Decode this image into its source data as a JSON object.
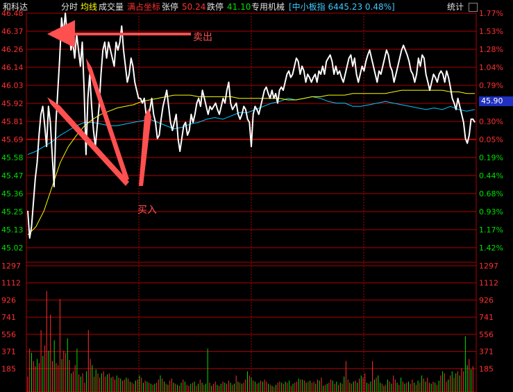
{
  "header": {
    "stock_name": "和科达",
    "mode": "分时",
    "avg_line": "均线",
    "volume": "成交量",
    "full_coords": "满占坐标",
    "limit_up_label": "张停",
    "limit_up_value": "50.24",
    "limit_down_label": "跌停",
    "limit_down_value": "41.10",
    "sector": "专用机械",
    "index_info": "[中小板指 6445.23 0.48%]",
    "stats_button": "统计"
  },
  "colors": {
    "price": "#ffffff",
    "avg": "#ffff00",
    "index": "#00c8ff",
    "grid": "#b00000",
    "up": "#ff3030",
    "down": "#00e000",
    "annotation": "#ff5050",
    "price_marker_bg": "#2030c0"
  },
  "annotations": {
    "sell": "卖出",
    "buy": "买入"
  },
  "current_price": "45.90",
  "chart_data": [
    {
      "type": "line",
      "name": "price",
      "ylim": [
        45.02,
        46.48
      ],
      "y_ticks": [
        "46.48",
        "46.37",
        "46.26",
        "46.14",
        "46.03",
        "45.92",
        "45.81",
        "45.69",
        "45.58",
        "45.47",
        "45.36",
        "45.25",
        "45.13",
        "45.02"
      ],
      "pct_ticks": [
        "1.77%",
        "1.53%",
        "1.28%",
        "1.04%",
        "0.79%",
        "0.55%",
        "0.30%",
        "0.05%",
        "0.19%",
        "0.44%",
        "0.68%",
        "0.93%",
        "1.17%",
        "1.42%"
      ],
      "prev_close": 45.67,
      "series": [
        {
          "name": "price",
          "values": [
            45.25,
            45.08,
            45.15,
            45.3,
            45.45,
            45.55,
            45.72,
            45.85,
            45.9,
            45.78,
            45.65,
            45.9,
            45.8,
            45.6,
            45.4,
            45.8,
            46.0,
            46.2,
            46.45,
            46.35,
            46.48,
            46.35,
            46.4,
            46.25,
            46.3,
            46.2,
            46.35,
            46.25,
            46.15,
            46.3,
            46.0,
            45.6,
            45.95,
            46.1,
            45.9,
            45.75,
            45.65,
            45.78,
            45.9,
            46.1,
            46.25,
            46.3,
            46.2,
            46.3,
            46.25,
            46.2,
            46.15,
            46.3,
            46.25,
            46.3,
            46.4,
            46.25,
            46.15,
            46.05,
            46.1,
            46.2,
            46.15,
            46.05,
            46.0,
            45.95,
            45.95,
            45.92,
            45.95,
            45.85,
            45.82,
            45.88,
            45.95,
            45.85,
            45.8,
            45.7,
            45.72,
            45.82,
            45.9,
            45.95,
            46.0,
            45.9,
            45.8,
            45.75,
            45.8,
            45.85,
            45.7,
            45.62,
            45.7,
            45.78,
            45.8,
            45.72,
            45.75,
            45.85,
            45.8,
            45.85,
            45.92,
            45.95,
            45.9,
            46.0,
            45.95,
            45.9,
            45.85,
            45.9,
            45.88,
            45.9,
            45.92,
            45.88,
            45.85,
            45.9,
            45.95,
            45.92,
            46.0,
            46.05,
            45.92,
            45.88,
            45.9,
            45.92,
            45.85,
            45.82,
            45.85,
            45.9,
            45.88,
            45.82,
            45.8,
            45.65,
            45.85,
            45.9,
            45.88,
            45.85,
            45.9,
            45.95,
            46.0,
            46.02,
            45.98,
            45.95,
            46.0,
            45.95,
            45.98,
            45.92,
            46.0,
            46.02,
            46.0,
            46.05,
            46.1,
            46.12,
            46.08,
            46.1,
            46.15,
            46.2,
            46.18,
            46.1,
            46.15,
            46.12,
            46.05,
            46.1,
            46.08,
            46.05,
            46.08,
            46.1,
            46.05,
            46.12,
            46.1,
            46.15,
            46.1,
            46.18,
            46.2,
            46.22,
            46.18,
            46.1,
            46.15,
            46.1,
            46.12,
            46.08,
            46.05,
            46.1,
            46.15,
            46.2,
            46.22,
            46.15,
            46.2,
            46.1,
            46.05,
            46.1,
            46.15,
            46.12,
            46.18,
            46.22,
            46.25,
            46.2,
            46.15,
            46.1,
            46.05,
            46.12,
            46.1,
            46.15,
            46.2,
            46.25,
            46.22,
            46.15,
            46.12,
            46.05,
            46.1,
            46.15,
            46.2,
            46.25,
            46.28,
            46.25,
            46.22,
            46.18,
            46.12,
            46.1,
            46.05,
            46.1,
            46.2,
            46.15,
            46.22,
            46.2,
            46.1,
            46.05,
            46.0,
            46.05,
            46.1,
            46.08,
            46.05,
            46.1,
            46.12,
            46.1,
            46.05,
            46.12,
            46.08,
            46.02,
            45.95,
            45.92,
            45.88,
            45.95,
            45.9,
            45.85,
            45.8,
            45.7,
            45.67,
            45.72,
            45.82,
            45.82,
            45.8
          ]
        },
        {
          "name": "avg",
          "values": [
            45.1,
            45.15,
            45.25,
            45.4,
            45.55,
            45.65,
            45.72,
            45.78,
            45.82,
            45.85,
            45.87,
            45.89,
            45.9,
            45.91,
            45.93,
            45.94,
            45.95,
            45.96,
            45.97,
            45.97,
            45.97,
            45.96,
            45.96,
            45.96,
            45.96,
            45.96,
            45.95,
            45.95,
            45.95,
            45.95,
            45.95,
            45.95,
            45.94,
            45.94,
            45.95,
            45.96,
            45.96,
            45.97,
            45.97,
            45.97,
            45.98,
            45.98,
            45.98,
            45.98,
            45.98,
            45.99,
            46.0,
            46.0,
            46.0,
            46.0,
            46.0,
            46.0,
            45.99,
            45.99,
            45.98,
            45.98
          ]
        },
        {
          "name": "index",
          "values": [
            45.6,
            45.62,
            45.65,
            45.68,
            45.72,
            45.75,
            45.78,
            45.8,
            45.8,
            45.79,
            45.78,
            45.78,
            45.79,
            45.8,
            45.81,
            45.82,
            45.8,
            45.78,
            45.76,
            45.77,
            45.79,
            45.8,
            45.82,
            45.83,
            45.82,
            45.84,
            45.86,
            45.86,
            45.88,
            45.9,
            45.92,
            45.93,
            45.95,
            45.94,
            45.95,
            45.96,
            45.95,
            45.93,
            45.92,
            45.92,
            45.9,
            45.9,
            45.91,
            45.92,
            45.93,
            45.92,
            45.91,
            45.9,
            45.89,
            45.88,
            45.89,
            45.88,
            45.9,
            45.88,
            45.87,
            45.88
          ]
        }
      ]
    },
    {
      "type": "bar",
      "name": "volume",
      "ylim": [
        0,
        1297
      ],
      "y_ticks": [
        "1297",
        "1112",
        "926",
        "741",
        "556",
        "371",
        "185"
      ],
      "values": [
        150,
        420,
        380,
        300,
        250,
        320,
        280,
        600,
        350,
        450,
        980,
        400,
        750,
        300,
        500,
        280,
        260,
        900,
        320,
        400,
        380,
        520,
        310,
        180,
        200,
        260,
        420,
        170,
        150,
        180,
        90,
        200,
        600,
        320,
        260,
        150,
        220,
        180,
        140,
        180,
        200,
        150,
        170,
        180,
        140,
        150,
        120,
        160,
        140,
        130,
        110,
        120,
        140,
        130,
        100,
        90,
        80,
        110,
        120,
        160,
        140,
        90,
        110,
        100,
        90,
        80,
        70,
        80,
        90,
        120,
        160,
        130,
        100,
        80,
        70,
        110,
        130,
        90,
        80,
        70,
        60,
        90,
        120,
        100,
        70,
        60,
        80,
        90,
        100,
        60,
        80,
        120,
        90,
        70,
        80,
        420,
        90,
        60,
        80,
        100,
        70,
        60,
        80,
        100,
        90,
        80,
        110,
        90,
        70,
        80,
        160,
        100,
        90,
        80,
        90,
        120,
        200,
        160,
        140,
        110,
        100,
        80,
        90,
        110,
        100,
        120,
        100,
        80,
        70,
        60,
        50,
        70,
        90,
        100,
        90,
        80,
        100,
        90,
        110,
        60,
        80,
        90,
        100,
        130,
        120,
        120,
        110,
        90,
        100,
        110,
        90,
        100,
        80,
        120,
        110,
        140,
        60,
        70,
        80,
        90,
        120,
        110,
        80,
        100,
        70,
        90,
        80,
        150,
        300,
        120,
        90,
        80,
        100,
        110,
        90,
        130,
        160,
        140,
        180,
        90,
        80,
        100,
        300,
        120,
        140,
        160,
        90,
        80,
        60,
        70,
        120,
        100,
        80,
        160,
        120,
        90,
        70,
        140,
        100,
        80,
        90,
        100,
        80,
        120,
        90,
        70,
        110,
        90,
        160,
        130,
        100,
        140,
        90,
        80,
        100,
        90,
        70,
        110,
        160,
        200,
        180,
        100,
        120,
        160,
        200,
        140,
        180,
        200,
        160,
        230,
        200,
        540,
        260,
        320,
        220,
        250
      ],
      "up": [
        1,
        1,
        0,
        1,
        1,
        0,
        1,
        1,
        0,
        1,
        1,
        0,
        1,
        1,
        0,
        1,
        1,
        1,
        0,
        1,
        1,
        0,
        1,
        0,
        1,
        1,
        0,
        1,
        0,
        1,
        1,
        0,
        1,
        1,
        0,
        1,
        0,
        1,
        1,
        0,
        1,
        1,
        0,
        1,
        0,
        1,
        1,
        0,
        1,
        0,
        1,
        1,
        0,
        1,
        0,
        1,
        1,
        0,
        1,
        0,
        1,
        0,
        1,
        0,
        1,
        0,
        1,
        0,
        1,
        1,
        0,
        1,
        0,
        1,
        0,
        1,
        1,
        0,
        1,
        0,
        1,
        0,
        1,
        0,
        1,
        1,
        0,
        1,
        0,
        1,
        0,
        1,
        0,
        1,
        0,
        0,
        1,
        0,
        1,
        1,
        0,
        1,
        0,
        1,
        0,
        1,
        1,
        0,
        1,
        0,
        1,
        0,
        1,
        0,
        1,
        1,
        0,
        1,
        0,
        1,
        0,
        1,
        0,
        1,
        0,
        1,
        1,
        0,
        1,
        0,
        1,
        0,
        1,
        1,
        0,
        1,
        0,
        1,
        0,
        1,
        0,
        1,
        1,
        0,
        1,
        0,
        1,
        0,
        1,
        0,
        1,
        1,
        0,
        1,
        0,
        1,
        0,
        1,
        0,
        1,
        1,
        0,
        1,
        0,
        1,
        0,
        1,
        0,
        1,
        1,
        0,
        1,
        0,
        1,
        0,
        1,
        0,
        1,
        1,
        0,
        1,
        0,
        1,
        0,
        1,
        0,
        0,
        1,
        0,
        1,
        0,
        1,
        0,
        1,
        1,
        0,
        1,
        0,
        1,
        0,
        1,
        0,
        1,
        1,
        0,
        1,
        0,
        1,
        0,
        1,
        0,
        1,
        1,
        0,
        1,
        0,
        1,
        0,
        1,
        0,
        1,
        1,
        0,
        1,
        0,
        1,
        0,
        1,
        0,
        1,
        1,
        0,
        0,
        1,
        0,
        1,
        0,
        1,
        0,
        1
      ]
    }
  ]
}
